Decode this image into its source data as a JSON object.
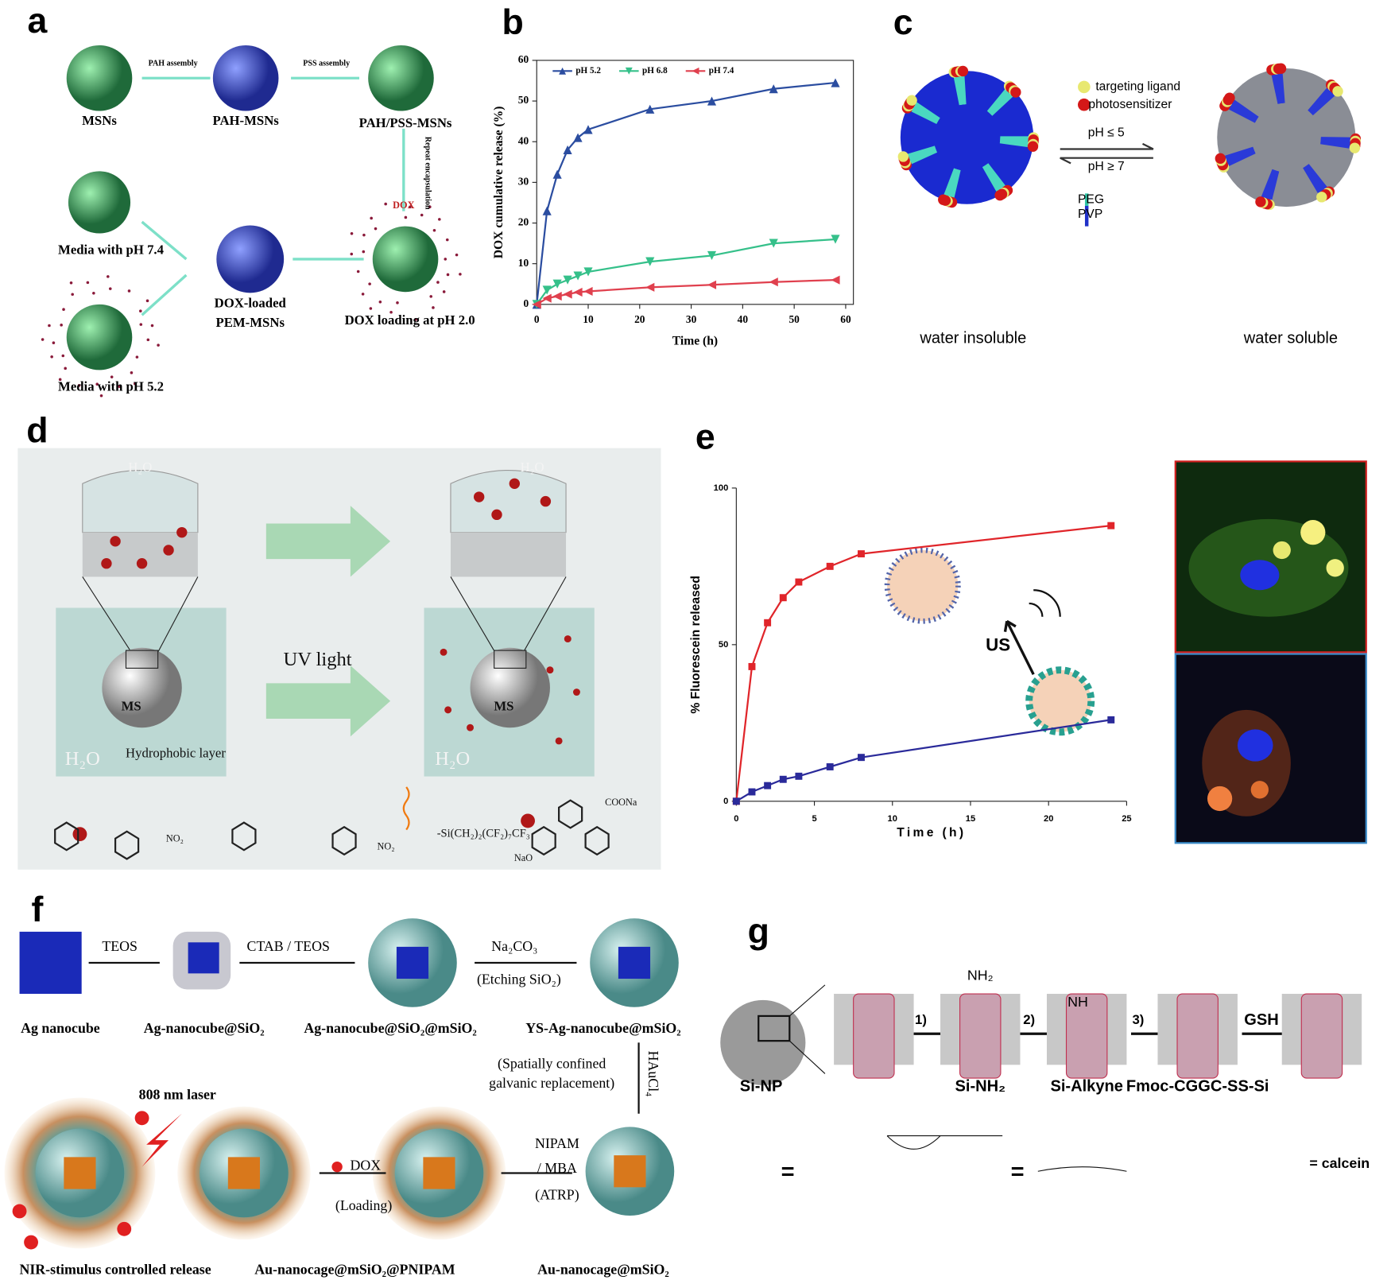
{
  "panel_letters": [
    "a",
    "b",
    "c",
    "d",
    "e",
    "f",
    "g"
  ],
  "panel_a": {
    "labels": [
      "MSNs",
      "PAH-MSNs",
      "PAH/PSS-MSNs",
      "PAH assembly",
      "PSS assembly",
      "Repeat encapsulation",
      "DOX",
      "Media with pH 7.4",
      "DOX-loaded",
      "PEM-MSNs",
      "DOX loading at pH 2.0",
      "Media with pH 5.2"
    ]
  },
  "panel_c": {
    "labels": [
      "targeting ligand",
      "photosensitizer",
      "pH ≤ 5",
      "pH ≥ 7",
      "PEG",
      "PVP",
      "water insoluble",
      "water soluble"
    ]
  },
  "panel_d": {
    "labels": [
      "H₂O",
      "H₂O",
      "UV light",
      "Hydrophobic layer",
      "MS",
      "MS",
      "H₂O",
      "H₂O",
      "NO₂",
      "NO₂",
      "-Si(CH₂)₂(CF₂)₇CF₃",
      "COONa",
      "NaO"
    ]
  },
  "panel_f": {
    "labels": [
      "TEOS",
      "CTAB / TEOS",
      "Na₂CO₃",
      "(Etching SiO₂)",
      "Ag nanocube",
      "Ag-nanocube@SiO₂",
      "Ag-nanocube@SiO₂@mSiO₂",
      "YS-Ag-nanocube@mSiO₂",
      "(Spatially confined",
      "galvanic replacement)",
      "HAuCl₄",
      "808 nm laser",
      "NIPAM",
      "/ MBA",
      "(ATRP)",
      "DOX",
      "(Loading)",
      "NIR-stimulus controlled release",
      "Au-nanocage@mSiO₂@PNIPAM",
      "Au-nanocage@mSiO₂"
    ]
  },
  "panel_g": {
    "labels": [
      "Si-NP",
      "1)",
      "2)",
      "3)",
      "GSH",
      "NH₂",
      "NH",
      "Si-NH₂",
      "Si-Alkyne",
      "Fmoc-CGGC-SS-Si",
      "=",
      "=",
      "= calcein"
    ]
  },
  "chart_data": [
    {
      "type": "line",
      "y_label": "DOX cumulative release (%)",
      "x_label": "Time (h)",
      "x": [
        0,
        2,
        4,
        6,
        8,
        10,
        22,
        34,
        46,
        58
      ],
      "series": [
        {
          "name": "pH 5.2",
          "color": "#2b4da0",
          "marker": "triangle-up",
          "values": [
            0,
            23,
            32,
            38,
            41,
            43,
            48,
            50,
            53,
            54.5
          ]
        },
        {
          "name": "pH 6.8",
          "color": "#35c08a",
          "marker": "triangle-down",
          "values": [
            0,
            3.5,
            5,
            6,
            7,
            8,
            10.5,
            12,
            15,
            16
          ]
        },
        {
          "name": "pH 7.4",
          "color": "#e0404e",
          "marker": "triangle-left",
          "values": [
            0,
            1.5,
            2,
            2.5,
            3,
            3.2,
            4.2,
            4.8,
            5.5,
            6
          ]
        }
      ],
      "xlim": [
        0,
        61.5
      ],
      "ylim": [
        0,
        60
      ],
      "xticks": [
        0,
        10,
        20,
        30,
        40,
        50,
        60
      ],
      "yticks": [
        0,
        10,
        20,
        30,
        40,
        50,
        60
      ],
      "legend": "upper left"
    },
    {
      "type": "line",
      "y_label": "% Fluorescein released",
      "x_label": "Time (h)",
      "annotation": "US",
      "series": [
        {
          "color": "#e0252a",
          "marker": "square",
          "x": [
            0,
            1,
            2,
            3,
            4,
            6,
            8,
            24
          ],
          "values": [
            0,
            43,
            57,
            65,
            70,
            75,
            79,
            88
          ]
        },
        {
          "color": "#2a2a9a",
          "marker": "square",
          "x": [
            0,
            1,
            2,
            3,
            4,
            6,
            8,
            24
          ],
          "values": [
            0,
            3,
            5,
            7,
            8,
            11,
            14,
            26
          ]
        }
      ],
      "xlim": [
        0,
        25
      ],
      "ylim": [
        0,
        100
      ],
      "xticks": [
        0,
        5,
        10,
        15,
        20,
        25
      ],
      "yticks": [
        0,
        50,
        100
      ]
    }
  ]
}
